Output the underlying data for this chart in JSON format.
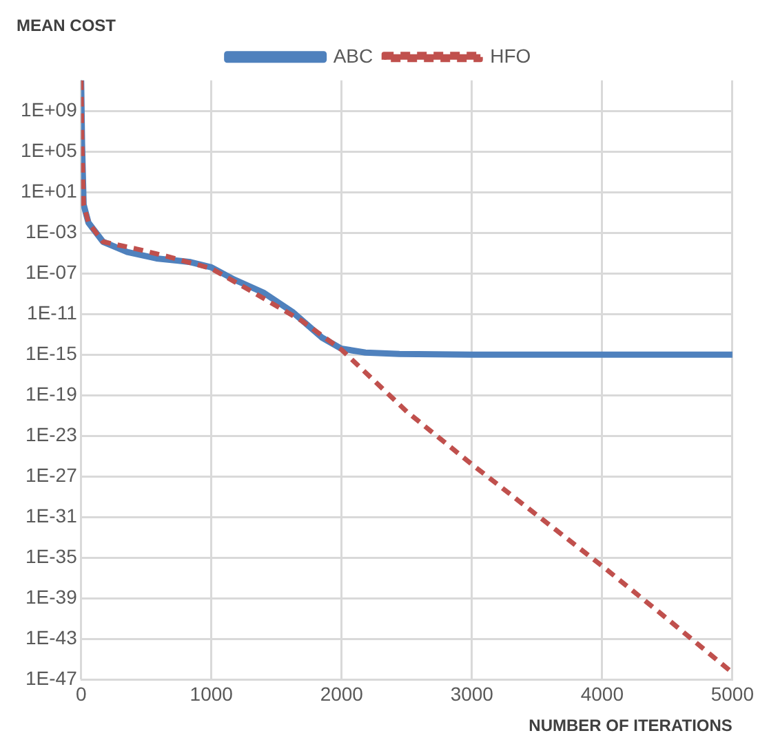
{
  "chart_data": {
    "type": "line",
    "ylabel": "MEAN COST",
    "xlabel": "NUMBER OF ITERATIONS",
    "log": "y",
    "grid": true,
    "legend": "top",
    "marker": "none",
    "xlim": [
      0,
      5000
    ],
    "xticks": [
      0,
      1000,
      2000,
      3000,
      4000,
      5000
    ],
    "ylim": [
      1e-47,
      1000000000000.0
    ],
    "yticks": [
      {
        "value": 1000000000.0,
        "label": "1E+09"
      },
      {
        "value": 100000.0,
        "label": "1E+05"
      },
      {
        "value": 10,
        "label": "1E+01"
      },
      {
        "value": 0.001,
        "label": "1E-03"
      },
      {
        "value": 1e-07,
        "label": "1E-07"
      },
      {
        "value": 1e-11,
        "label": "1E-11"
      },
      {
        "value": 1e-15,
        "label": "1E-15"
      },
      {
        "value": 1e-19,
        "label": "1E-19"
      },
      {
        "value": 1e-23,
        "label": "1E-23"
      },
      {
        "value": 1e-27,
        "label": "1E-27"
      },
      {
        "value": 1e-31,
        "label": "1E-31"
      },
      {
        "value": 1e-35,
        "label": "1E-35"
      },
      {
        "value": 1e-39,
        "label": "1E-39"
      },
      {
        "value": 1e-43,
        "label": "1E-43"
      },
      {
        "value": 1e-47,
        "label": "1E-47"
      }
    ],
    "series": [
      {
        "name": "ABC",
        "color": "#4f81bd",
        "line_style": "solid",
        "x": [
          0,
          7,
          19,
          56,
          168,
          354,
          578,
          840,
          1000,
          1175,
          1399,
          1623,
          1847,
          1996,
          2183,
          2444,
          3000,
          4000,
          5000
        ],
        "values": [
          1000000000000.0,
          600000.0,
          0.6,
          0.01,
          0.00013,
          1.3e-05,
          3e-06,
          1.3e-06,
          4e-07,
          2.5e-08,
          1.3e-09,
          1.6e-11,
          5e-14,
          4e-15,
          1.6e-15,
          1.2e-15,
          1e-15,
          1e-15,
          1e-15
        ]
      },
      {
        "name": "HFO",
        "color": "#c0504d",
        "line_style": "dashed",
        "x": [
          0,
          7,
          19,
          56,
          168,
          429,
          653,
          1000,
          1325,
          1698,
          2000,
          2500,
          3000,
          3500,
          4000,
          4500,
          5000
        ],
        "values": [
          1000000000000.0,
          600000.0,
          0.6,
          0.01,
          0.00013,
          2.5e-05,
          5e-06,
          3e-07,
          1.3e-09,
          2e-12,
          3e-15,
          2.5e-21,
          1.6e-26,
          1.6e-31,
          1.6e-36,
          1e-41,
          5e-47
        ]
      }
    ]
  }
}
